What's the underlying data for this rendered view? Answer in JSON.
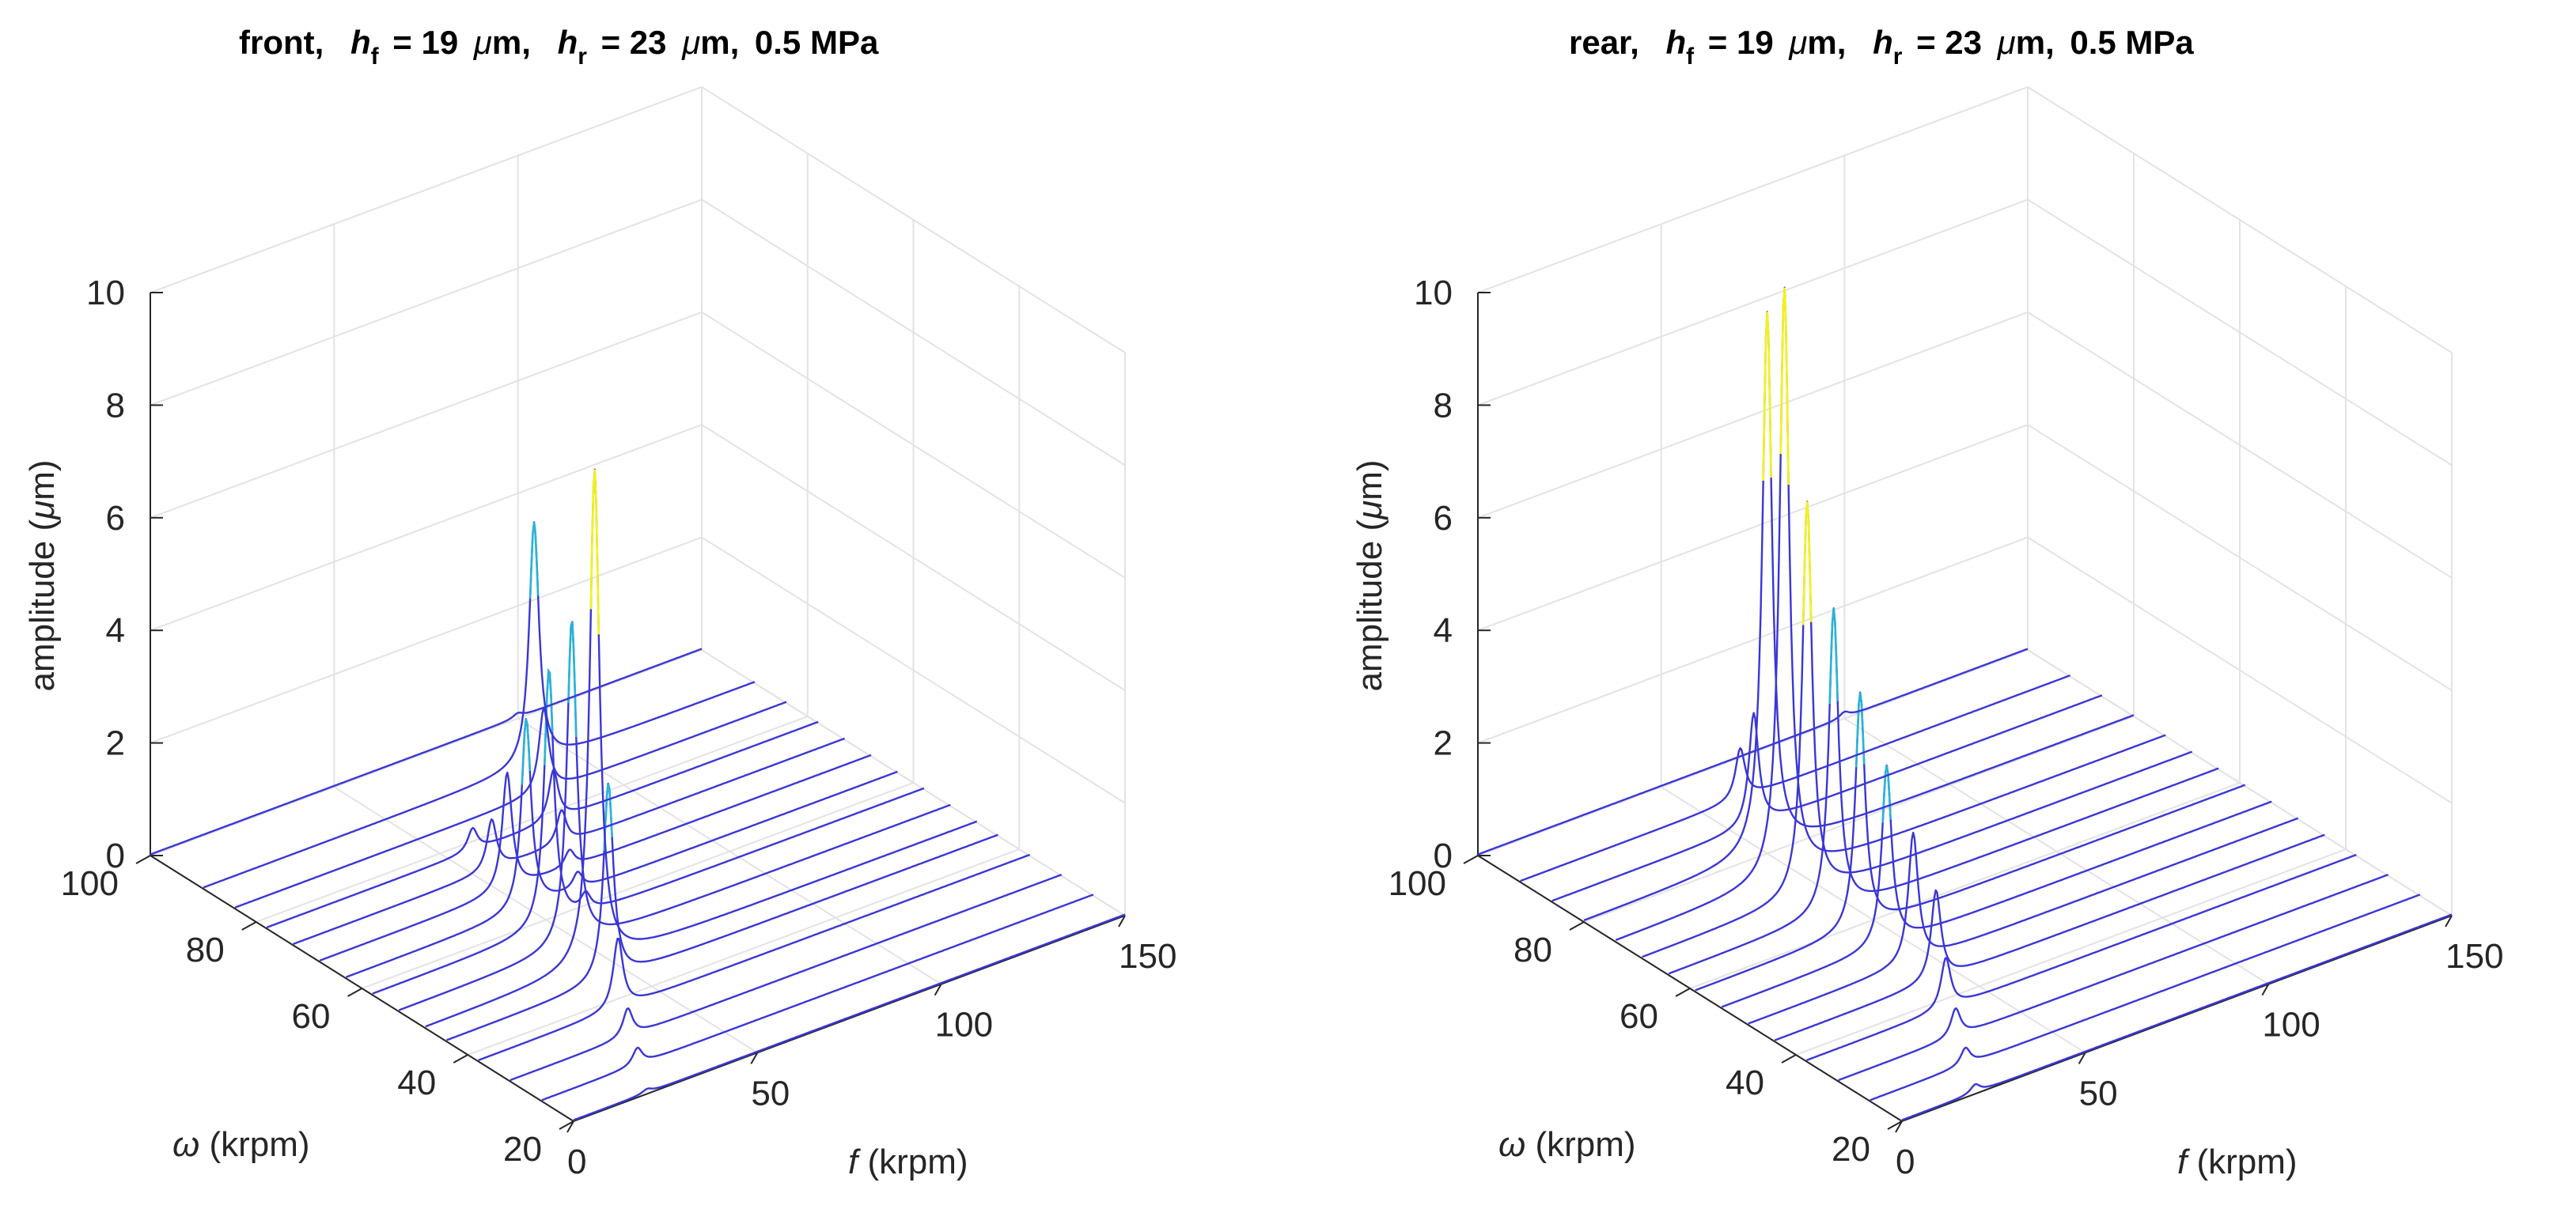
{
  "figure": {
    "colors": {
      "grid": "#e3e3e3",
      "axis": "#262626",
      "trace": "#3a36d6",
      "mid_peak": "#2ab3d6",
      "top_peak": "#f2f21e"
    }
  },
  "chart_data": [
    {
      "type": "waterfall",
      "panel": "front",
      "title": {
        "prefix": "front,",
        "h_symbol": "h",
        "f_sub": "f",
        "r_sub": "r",
        "hf_value": "= 19",
        "hr_value": "= 23",
        "mu": "μ",
        "unit": "m,",
        "pressure": "0.5 MPa"
      },
      "xlabel": {
        "var": "f",
        "unit": " (krpm)"
      },
      "ylabel": {
        "var": "ω",
        "unit": " (krpm)"
      },
      "zlabel": {
        "pre": "amplitude (",
        "mu": "μ",
        "post": "m)"
      },
      "xlim": [
        0,
        150
      ],
      "ylim": [
        20,
        100
      ],
      "zlim": [
        0,
        10
      ],
      "x_ticks": [
        "0",
        "50",
        "100",
        "150"
      ],
      "y_ticks": [
        "20",
        "40",
        "60",
        "80",
        "100"
      ],
      "z_ticks": [
        "0",
        "2",
        "4",
        "6",
        "8",
        "10"
      ],
      "grid": true,
      "series": [
        {
          "omega": 20,
          "peaks": [
            {
              "f": 20,
              "a": 0.07
            }
          ]
        },
        {
          "omega": 26,
          "peaks": [
            {
              "f": 26,
              "a": 0.3
            }
          ]
        },
        {
          "omega": 32,
          "peaks": [
            {
              "f": 32,
              "a": 0.5
            }
          ]
        },
        {
          "omega": 38,
          "peaks": [
            {
              "f": 38,
              "a": 1.25
            }
          ]
        },
        {
          "omega": 44,
          "peaks": [
            {
              "f": 44,
              "a": 3.5
            }
          ]
        },
        {
          "omega": 48,
          "peaks": [
            {
              "f": 46,
              "a": 8.8
            }
          ]
        },
        {
          "omega": 53,
          "peaks": [
            {
              "f": 47,
              "a": 5.8
            }
          ]
        },
        {
          "omega": 58,
          "peaks": [
            {
              "f": 48,
              "a": 4.6
            },
            {
              "f": 58,
              "a": 0.3
            }
          ]
        },
        {
          "omega": 63,
          "peaks": [
            {
              "f": 49,
              "a": 3.4
            },
            {
              "f": 63,
              "a": 0.3
            }
          ]
        },
        {
          "omega": 68,
          "peaks": [
            {
              "f": 51,
              "a": 2.1
            },
            {
              "f": 68,
              "a": 0.3
            }
          ]
        },
        {
          "omega": 73,
          "peaks": [
            {
              "f": 54,
              "a": 0.9
            },
            {
              "f": 73,
              "a": 0.6
            }
          ]
        },
        {
          "omega": 78,
          "peaks": [
            {
              "f": 56,
              "a": 0.4
            },
            {
              "f": 78,
              "a": 0.9
            }
          ]
        },
        {
          "omega": 84,
          "peaks": [
            {
              "f": 84,
              "a": 1.5
            }
          ]
        },
        {
          "omega": 90,
          "peaks": [
            {
              "f": 90,
              "a": 4.3
            }
          ]
        },
        {
          "omega": 100,
          "peaks": [
            {
              "f": 100,
              "a": 0.08
            }
          ]
        }
      ]
    },
    {
      "type": "waterfall",
      "panel": "rear",
      "title": {
        "prefix": "rear,",
        "h_symbol": "h",
        "f_sub": "f",
        "r_sub": "r",
        "hf_value": "= 19",
        "hr_value": "= 23",
        "mu": "μ",
        "unit": "m,",
        "pressure": "0.5 MPa"
      },
      "xlabel": {
        "var": "f",
        "unit": " (krpm)"
      },
      "ylabel": {
        "var": "ω",
        "unit": " (krpm)"
      },
      "zlabel": {
        "pre": "amplitude (",
        "mu": "μ",
        "post": "m)"
      },
      "xlim": [
        0,
        150
      ],
      "ylim": [
        20,
        100
      ],
      "zlim": [
        0,
        10
      ],
      "x_ticks": [
        "0",
        "50",
        "100",
        "150"
      ],
      "y_ticks": [
        "20",
        "40",
        "60",
        "80",
        "100"
      ],
      "z_ticks": [
        "0",
        "2",
        "4",
        "6",
        "8",
        "10"
      ],
      "grid": true,
      "series": [
        {
          "omega": 20,
          "peaks": [
            {
              "f": 20,
              "a": 0.15
            }
          ]
        },
        {
          "omega": 26,
          "peaks": [
            {
              "f": 26,
              "a": 0.3
            }
          ]
        },
        {
          "omega": 32,
          "peaks": [
            {
              "f": 32,
              "a": 0.5
            }
          ]
        },
        {
          "omega": 38,
          "peaks": [
            {
              "f": 38,
              "a": 0.9
            }
          ]
        },
        {
          "omega": 44,
          "peaks": [
            {
              "f": 44,
              "a": 1.6
            }
          ]
        },
        {
          "omega": 49,
          "peaks": [
            {
              "f": 45,
              "a": 2.3
            }
          ]
        },
        {
          "omega": 54,
          "peaks": [
            {
              "f": 45,
              "a": 3.2
            }
          ]
        },
        {
          "omega": 59,
          "peaks": [
            {
              "f": 45,
              "a": 4.2
            }
          ]
        },
        {
          "omega": 64,
          "peaks": [
            {
              "f": 45,
              "a": 5.4
            }
          ]
        },
        {
          "omega": 69,
          "peaks": [
            {
              "f": 45,
              "a": 7.0
            }
          ]
        },
        {
          "omega": 74,
          "peaks": [
            {
              "f": 46,
              "a": 10.5
            }
          ]
        },
        {
          "omega": 80,
          "peaks": [
            {
              "f": 50,
              "a": 9.6
            }
          ]
        },
        {
          "omega": 86,
          "peaks": [
            {
              "f": 55,
              "a": 2.0
            }
          ]
        },
        {
          "omega": 92,
          "peaks": [
            {
              "f": 60,
              "a": 0.9
            }
          ]
        },
        {
          "omega": 100,
          "peaks": [
            {
              "f": 100,
              "a": 0.1
            }
          ]
        }
      ]
    }
  ]
}
